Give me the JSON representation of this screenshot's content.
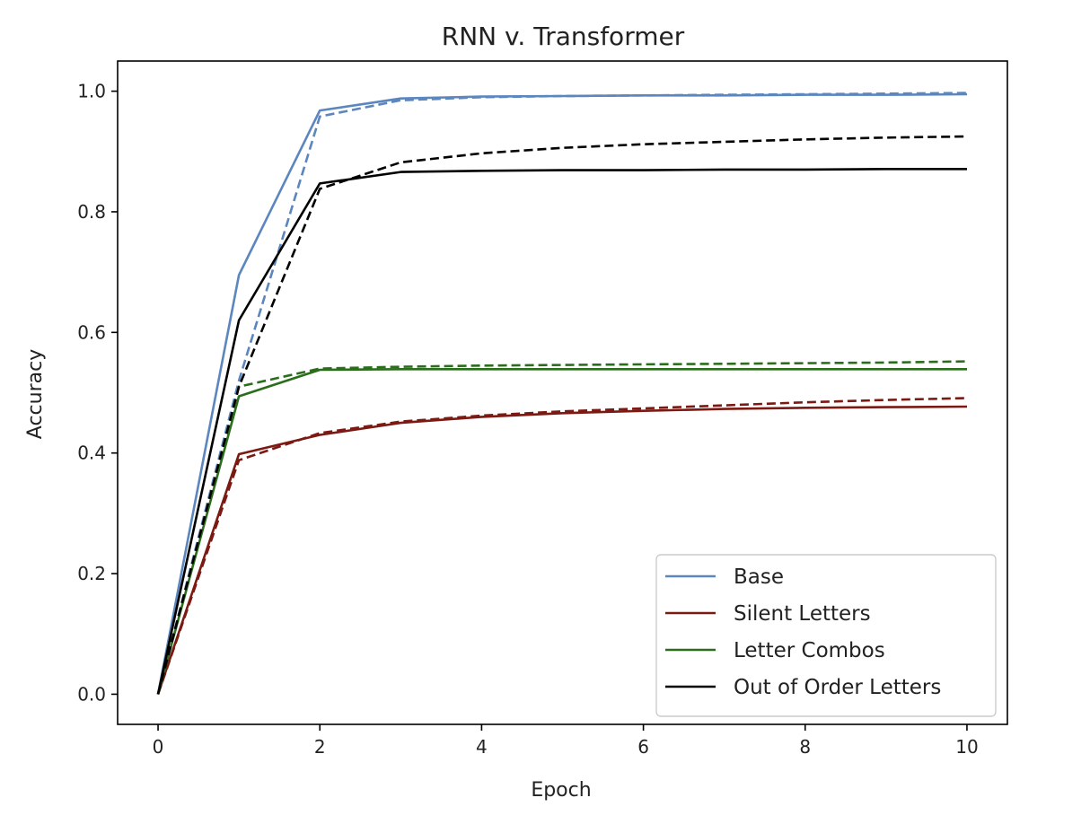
{
  "chart_data": {
    "type": "line",
    "title": "RNN v. Transformer",
    "xlabel": "Epoch",
    "ylabel": "Accuracy",
    "xlim": [
      -0.5,
      10.5
    ],
    "ylim": [
      -0.05,
      1.05
    ],
    "xticks": [
      0,
      2,
      4,
      6,
      8,
      10
    ],
    "xtick_labels": [
      "0",
      "2",
      "4",
      "6",
      "8",
      "10"
    ],
    "yticks": [
      0.0,
      0.2,
      0.4,
      0.6,
      0.8,
      1.0
    ],
    "ytick_labels": [
      "0.0",
      "0.2",
      "0.4",
      "0.6",
      "0.8",
      "1.0"
    ],
    "grid": false,
    "legend_position": "lower-right",
    "x": [
      0,
      1,
      2,
      3,
      4,
      5,
      6,
      7,
      8,
      9,
      10
    ],
    "series": [
      {
        "name": "Base",
        "color": "#5b86be",
        "style": "solid",
        "values": [
          0.0,
          0.695,
          0.968,
          0.988,
          0.991,
          0.992,
          0.993,
          0.993,
          0.994,
          0.994,
          0.995
        ]
      },
      {
        "name": "",
        "color": "#5b86be",
        "style": "dashed",
        "values": [
          0.0,
          0.52,
          0.958,
          0.985,
          0.99,
          0.992,
          0.993,
          0.994,
          0.995,
          0.996,
          0.997
        ]
      },
      {
        "name": "Silent Letters",
        "color": "#7b1a12",
        "style": "solid",
        "values": [
          0.0,
          0.398,
          0.43,
          0.45,
          0.46,
          0.466,
          0.47,
          0.473,
          0.475,
          0.476,
          0.477
        ]
      },
      {
        "name": "",
        "color": "#7b1a12",
        "style": "dashed",
        "values": [
          0.0,
          0.388,
          0.433,
          0.452,
          0.462,
          0.469,
          0.474,
          0.479,
          0.484,
          0.488,
          0.491
        ]
      },
      {
        "name": "Letter Combos",
        "color": "#2a6e1c",
        "style": "solid",
        "values": [
          0.0,
          0.494,
          0.538,
          0.539,
          0.539,
          0.539,
          0.539,
          0.539,
          0.539,
          0.539,
          0.539
        ]
      },
      {
        "name": "",
        "color": "#2a6e1c",
        "style": "dashed",
        "values": [
          0.0,
          0.51,
          0.54,
          0.543,
          0.545,
          0.546,
          0.547,
          0.548,
          0.549,
          0.55,
          0.552
        ]
      },
      {
        "name": "Out of Order Letters",
        "color": "#000000",
        "style": "solid",
        "values": [
          0.0,
          0.62,
          0.847,
          0.866,
          0.868,
          0.869,
          0.869,
          0.87,
          0.87,
          0.871,
          0.871
        ]
      },
      {
        "name": "",
        "color": "#000000",
        "style": "dashed",
        "values": [
          0.0,
          0.51,
          0.838,
          0.882,
          0.897,
          0.906,
          0.912,
          0.916,
          0.92,
          0.923,
          0.925
        ]
      }
    ]
  }
}
